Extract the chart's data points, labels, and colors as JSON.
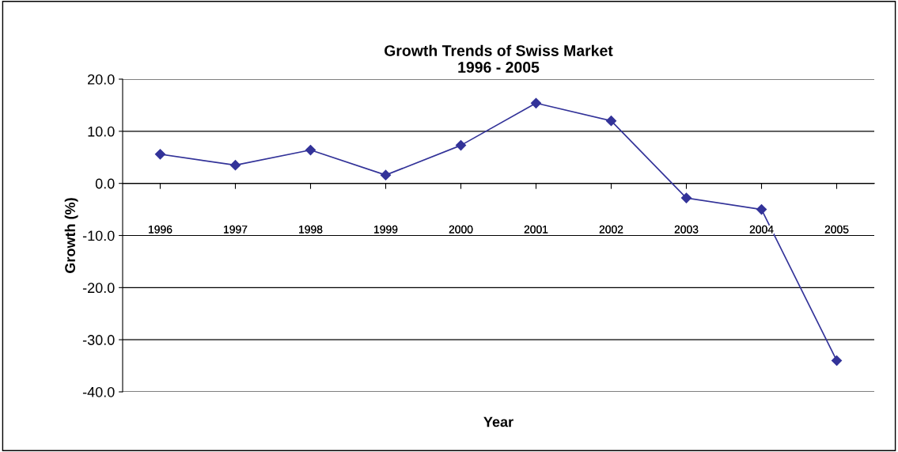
{
  "chart_data": {
    "type": "line",
    "title": "Growth Trends of Swiss Market\n1996 - 2005",
    "xlabel": "Year",
    "ylabel": "Growth (%)",
    "categories": [
      "1996",
      "1997",
      "1998",
      "1999",
      "2000",
      "2001",
      "2002",
      "2003",
      "2004",
      "2005"
    ],
    "series": [
      {
        "color": "#333399",
        "values": [
          5.6,
          3.5,
          6.4,
          1.6,
          7.3,
          15.4,
          12.0,
          -2.8,
          -5.0,
          -34.0
        ]
      }
    ],
    "ylim": [
      -40,
      20
    ],
    "yticks": [
      {
        "value": -40,
        "label": "-40.0"
      },
      {
        "value": -30,
        "label": "-30.0"
      },
      {
        "value": -20,
        "label": "-20.0"
      },
      {
        "value": -10,
        "label": "-10.0"
      },
      {
        "value": 0,
        "label": "0.0"
      },
      {
        "value": 10,
        "label": "10.0"
      },
      {
        "value": 20,
        "label": "20.0"
      }
    ],
    "grid": "y",
    "marker": "diamond",
    "line_style": "solid"
  }
}
